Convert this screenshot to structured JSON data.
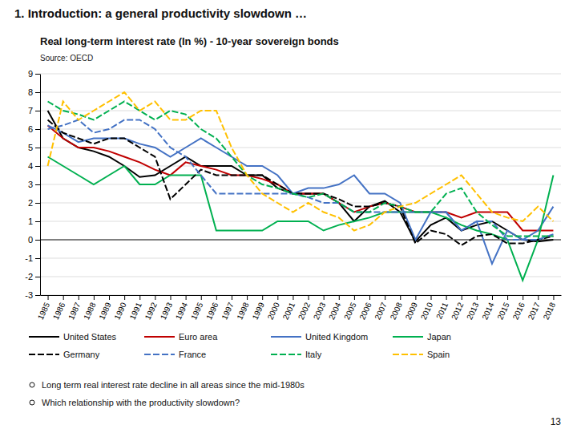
{
  "chart_data": {
    "type": "line",
    "title": "1. Introduction: a general productivity slowdown …",
    "subtitle": "Real long-term interest rate (In %) - 10-year sovereign bonds",
    "annotations": [
      "Source: OECD",
      "Long term real interest rate decline in all areas since the mid-1980s",
      "Which relationship with the productivity slowdown?",
      "13"
    ],
    "x": [
      1985,
      1986,
      1987,
      1988,
      1989,
      1990,
      1991,
      1992,
      1993,
      1994,
      1995,
      1996,
      1997,
      1998,
      1999,
      2000,
      2001,
      2002,
      2003,
      2004,
      2005,
      2006,
      2007,
      2008,
      2009,
      2010,
      2011,
      2012,
      2013,
      2014,
      2015,
      2016,
      2017,
      2018
    ],
    "xlim": [
      1984.5,
      2018.5
    ],
    "xticks": [
      1985,
      1986,
      1987,
      1988,
      1989,
      1990,
      1991,
      1992,
      1993,
      1994,
      1995,
      1996,
      1997,
      1998,
      1999,
      2000,
      2001,
      2002,
      2003,
      2004,
      2005,
      2006,
      2007,
      2008,
      2009,
      2010,
      2011,
      2012,
      2013,
      2014,
      2015,
      2016,
      2017,
      2018
    ],
    "ylim": [
      -3,
      9
    ],
    "yticks": [
      -3,
      -2,
      -1,
      0,
      1,
      2,
      3,
      4,
      5,
      6,
      7,
      8,
      9
    ],
    "grid": true,
    "legend": "bottom",
    "series": [
      {
        "name": "United States",
        "color": "#000000",
        "line_style": "solid",
        "values": [
          7.0,
          5.5,
          5.0,
          4.8,
          4.5,
          4.0,
          3.4,
          3.5,
          4.0,
          4.5,
          4.0,
          4.0,
          4.0,
          3.5,
          3.5,
          2.8,
          2.5,
          2.5,
          2.5,
          2.0,
          1.0,
          1.8,
          2.1,
          1.5,
          -0.1,
          0.8,
          1.2,
          0.5,
          0.8,
          1.0,
          0.5,
          0.0,
          -0.1,
          0.0
        ]
      },
      {
        "name": "Euro area",
        "color": "#c00000",
        "line_style": "solid",
        "values": [
          6.2,
          5.5,
          5.0,
          5.0,
          4.8,
          4.5,
          4.2,
          3.8,
          3.5,
          4.2,
          4.0,
          3.8,
          3.5,
          3.5,
          3.3,
          3.0,
          2.5,
          2.5,
          2.5,
          2.0,
          1.5,
          1.8,
          2.0,
          1.8,
          1.5,
          1.5,
          1.5,
          1.2,
          1.5,
          1.5,
          1.5,
          0.5,
          0.5,
          0.5
        ]
      },
      {
        "name": "United Kingdom",
        "color": "#4472c4",
        "line_style": "solid",
        "values": [
          6.2,
          5.8,
          5.3,
          5.5,
          5.5,
          5.5,
          5.2,
          5.0,
          4.5,
          5.0,
          5.5,
          5.0,
          4.5,
          4.0,
          4.0,
          3.5,
          2.5,
          2.8,
          2.8,
          3.0,
          3.5,
          2.5,
          2.5,
          2.0,
          0.0,
          1.5,
          1.5,
          0.5,
          1.0,
          -1.3,
          0.5,
          0.0,
          0.5,
          1.8
        ]
      },
      {
        "name": "Japan",
        "color": "#00b050",
        "line_style": "solid",
        "values": [
          4.5,
          4.0,
          3.5,
          3.0,
          3.5,
          4.0,
          3.0,
          3.0,
          3.5,
          3.5,
          3.5,
          0.5,
          0.5,
          0.5,
          0.5,
          1.0,
          1.0,
          1.0,
          0.5,
          0.8,
          1.0,
          1.2,
          1.5,
          1.5,
          1.5,
          1.5,
          1.2,
          0.8,
          0.5,
          0.3,
          0.0,
          -2.2,
          0.0,
          3.5
        ]
      },
      {
        "name": "Germany",
        "color": "#000000",
        "line_style": "dashed",
        "values": [
          6.5,
          5.8,
          5.5,
          5.2,
          5.5,
          5.5,
          5.0,
          4.5,
          2.2,
          3.0,
          3.8,
          3.5,
          3.5,
          3.5,
          3.5,
          3.0,
          2.5,
          2.5,
          2.5,
          2.2,
          1.8,
          1.8,
          2.0,
          1.8,
          -0.2,
          0.5,
          0.3,
          -0.3,
          0.2,
          0.3,
          -0.2,
          -0.2,
          0.0,
          0.2
        ]
      },
      {
        "name": "France",
        "color": "#4472c4",
        "line_style": "dashed",
        "values": [
          6.0,
          6.2,
          6.5,
          5.8,
          6.0,
          6.5,
          6.5,
          6.0,
          5.0,
          4.5,
          3.5,
          2.5,
          2.5,
          2.5,
          2.5,
          2.5,
          2.5,
          2.3,
          2.0,
          2.0,
          1.5,
          1.5,
          1.5,
          1.5,
          1.5,
          1.5,
          1.5,
          0.5,
          1.0,
          1.0,
          0.0,
          0.0,
          0.0,
          0.3
        ]
      },
      {
        "name": "Italy",
        "color": "#00b050",
        "line_style": "dashed",
        "values": [
          7.5,
          7.0,
          6.8,
          6.5,
          7.0,
          7.5,
          7.0,
          6.5,
          7.0,
          6.8,
          6.0,
          5.5,
          4.5,
          3.5,
          3.0,
          2.8,
          2.5,
          2.3,
          2.5,
          2.0,
          1.5,
          1.5,
          2.0,
          1.8,
          1.5,
          1.5,
          2.5,
          2.8,
          1.5,
          0.8,
          0.2,
          0.2,
          0.2,
          0.2
        ]
      },
      {
        "name": "Spain",
        "color": "#ffc000",
        "line_style": "dashed",
        "values": [
          4.0,
          7.5,
          6.5,
          7.0,
          7.5,
          8.0,
          7.0,
          7.5,
          6.5,
          6.5,
          7.0,
          7.0,
          5.0,
          3.5,
          2.5,
          2.0,
          1.5,
          2.0,
          1.5,
          1.2,
          0.5,
          0.8,
          1.5,
          1.8,
          2.0,
          2.5,
          3.0,
          3.5,
          2.5,
          1.5,
          1.2,
          1.0,
          1.8,
          1.0
        ]
      }
    ]
  }
}
